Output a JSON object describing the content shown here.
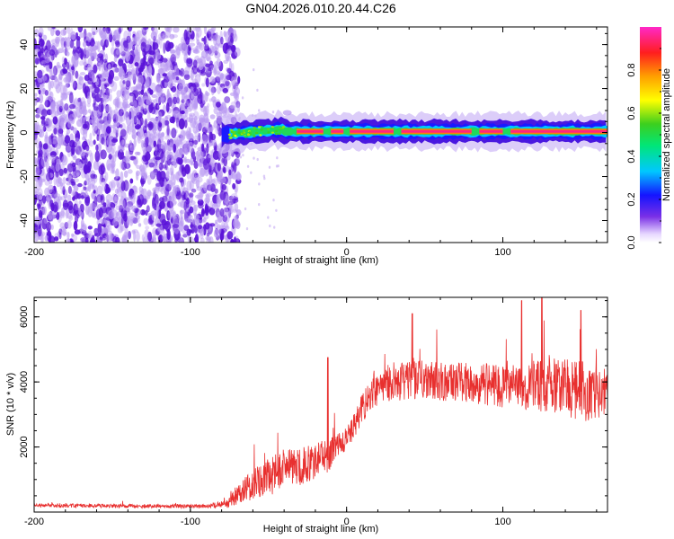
{
  "title": "GN04.2026.010.20.44.C26",
  "colors": {
    "series": "#e8302f",
    "spectrum_noise_dark": "#5a12d8",
    "spectrum_noise_light": "#b999f2",
    "axis": "#000000"
  },
  "chart_data": [
    {
      "type": "heatmap",
      "name": "spectrogram",
      "title": "GN04.2026.010.20.44.C26",
      "xlabel": "Height of straight line (km)",
      "ylabel": "Frequency (Hz)",
      "xlim": [
        -200,
        167
      ],
      "ylim": [
        -50,
        48
      ],
      "xticks": [
        -200,
        -100,
        0,
        100
      ],
      "yticks": [
        -40,
        -20,
        0,
        20,
        40
      ],
      "colorbar": {
        "label": "Normalized spectral amplitude",
        "range": [
          0.0,
          0.98
        ],
        "ticks": [
          0.0,
          0.2,
          0.4,
          0.6,
          0.8
        ],
        "tick_labels": [
          "0.0",
          "0.2",
          "0.4",
          "0.6",
          "0.8"
        ]
      },
      "regions": [
        {
          "description": "broadband noise",
          "x_range": [
            -200,
            -73
          ],
          "freq_range": [
            -50,
            48
          ],
          "amplitude": 0.1
        },
        {
          "description": "signal onset band",
          "x_range": [
            -80,
            -40
          ],
          "freq_center": -1,
          "freq_halfwidth": 6,
          "amplitude": 0.45
        },
        {
          "description": "narrow carrier line",
          "x_range": [
            -40,
            167
          ],
          "freq_center": 0.5,
          "freq_halfwidth": 5,
          "amplitude": 0.95
        }
      ]
    },
    {
      "type": "line",
      "name": "snr",
      "xlabel": "Height of straight line (km)",
      "ylabel": "SNR (10 * v/v)",
      "xlim": [
        -200,
        167
      ],
      "ylim": [
        0,
        6600
      ],
      "xticks": [
        -200,
        -100,
        0,
        100
      ],
      "yticks": [
        2000,
        4000,
        6000
      ],
      "series": [
        {
          "name": "SNR",
          "x": [
            -200,
            -160,
            -120,
            -90,
            -76,
            -70,
            -60,
            -50,
            -40,
            -30,
            -20,
            -15,
            -12,
            -8,
            -4,
            0,
            5,
            10,
            15,
            20,
            30,
            40,
            50,
            60,
            70,
            80,
            90,
            100,
            110,
            120,
            130,
            140,
            150,
            160,
            167
          ],
          "values": [
            200,
            190,
            180,
            180,
            250,
            550,
            800,
            1100,
            1350,
            1400,
            1550,
            1800,
            1600,
            2000,
            2100,
            2250,
            2700,
            3200,
            3600,
            3850,
            4000,
            4050,
            4100,
            4000,
            4000,
            3950,
            3900,
            3850,
            3850,
            3900,
            3950,
            3800,
            3700,
            3750,
            3750
          ],
          "noise_amplitude": [
            60,
            60,
            60,
            60,
            120,
            300,
            500,
            550,
            600,
            600,
            550,
            500,
            450,
            400,
            350,
            350,
            400,
            450,
            500,
            550,
            600,
            600,
            600,
            600,
            600,
            650,
            650,
            650,
            700,
            800,
            900,
            950,
            950,
            900,
            850
          ],
          "peaks": [
            {
              "x": -12,
              "y": 4750
            },
            {
              "x": 42,
              "y": 6100
            },
            {
              "x": 112,
              "y": 6500
            },
            {
              "x": 125,
              "y": 6700
            },
            {
              "x": 150,
              "y": 6200
            }
          ]
        }
      ]
    }
  ]
}
